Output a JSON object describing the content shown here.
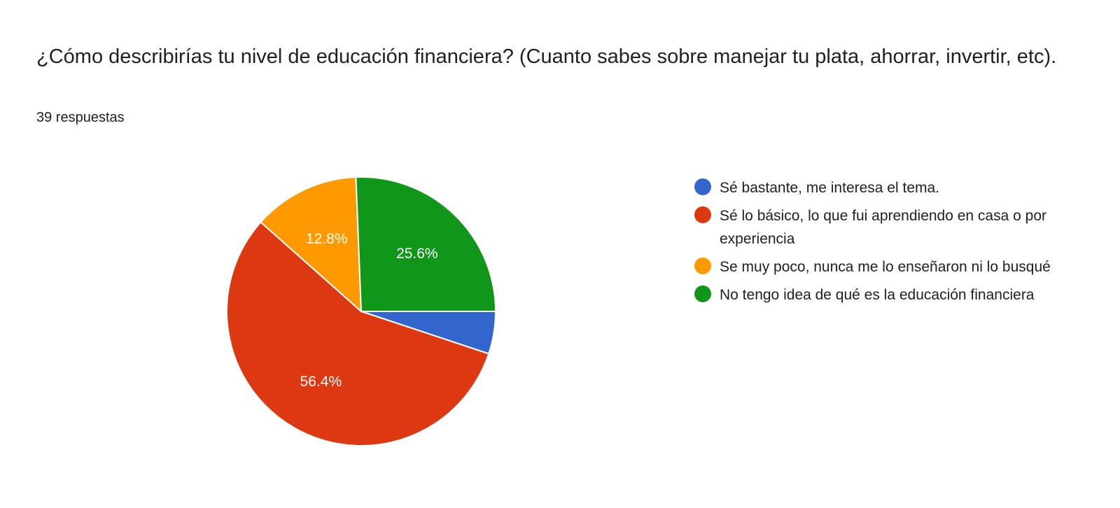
{
  "header": {
    "title": "¿Cómo describirías tu nivel de educación financiera? (Cuanto sabes sobre manejar tu plata, ahorrar, invertir, etc).",
    "responses": "39 respuestas"
  },
  "chart_data": {
    "type": "pie",
    "legend_position": "right",
    "start": "3 o'clock, clockwise",
    "slices": [
      {
        "label": "Sé bastante, me interesa el tema.",
        "value": 5.1,
        "display": "",
        "color": "#3366cc"
      },
      {
        "label": "Sé lo básico, lo que fui aprendiendo en casa o por experiencia",
        "value": 56.4,
        "display": "56.4%",
        "color": "#dc3912"
      },
      {
        "label": "Se muy poco, nunca me lo enseñaron ni lo busqué",
        "value": 12.8,
        "display": "12.8%",
        "color": "#ff9900"
      },
      {
        "label": "No tengo idea de qué es la educación financiera",
        "value": 25.6,
        "display": "25.6%",
        "color": "#109618"
      }
    ]
  }
}
